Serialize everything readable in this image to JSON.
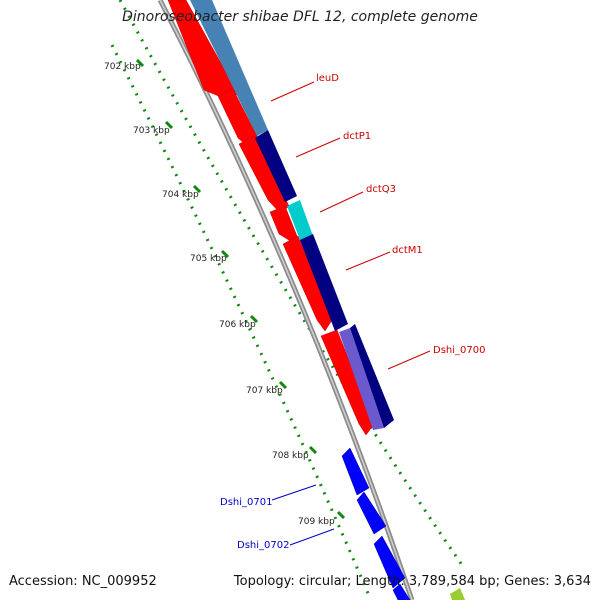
{
  "title": "Dinoroseobacter shibae DFL 12, complete genome",
  "footer": {
    "accession": "Accession: NC_009952",
    "stats": "Topology: circular; Length: 3,789,584 bp; Genes: 3,634"
  },
  "colors": {
    "forward_gene": "#ff0000",
    "reverse_gene": "#0000ff",
    "backbone": "#8c8c8c",
    "tick_dots": "#118811",
    "label_forward": "#cc0000",
    "label_reverse": "#0000cc",
    "dctP1_fill": "#000080",
    "dctQ3_fill": "#00cccc",
    "leuD_fill": "#4682b4",
    "dshi0700_fill": "#6a5acd"
  },
  "ticks": [
    "702 kbp",
    "703 kbp",
    "704 kbp",
    "705 kbp",
    "706 kbp",
    "707 kbp",
    "708 kbp",
    "709 kbp"
  ],
  "gene_labels": {
    "leuD": "leuD",
    "dctP1": "dctP1",
    "dctQ3": "dctQ3",
    "dctM1": "dctM1",
    "dshi_0700": "Dshi_0700",
    "dshi_0701": "Dshi_0701",
    "dshi_0702": "Dshi_0702"
  }
}
